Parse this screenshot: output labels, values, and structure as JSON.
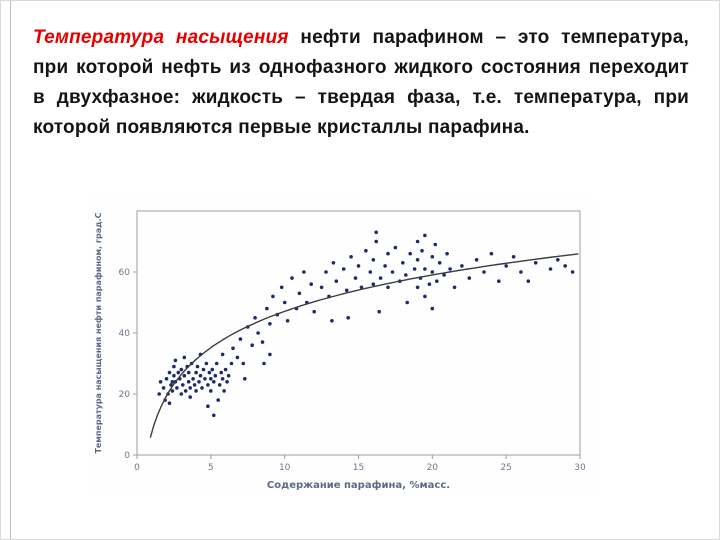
{
  "colors": {
    "accent_red": "#e60000",
    "body_text": "#141414",
    "point_color": "#1c2b6e",
    "curve_color": "#3c3c3c",
    "axis_color": "#9aa0a6"
  },
  "paragraph": {
    "term": "Температура насыщения",
    "body": " нефти парафином – это температура, при которой нефть из однофазного жидкого состояния переходит в двухфазное: жидкость – твердая фаза, т.е. температура, при которой появляются первые кристаллы парафина."
  },
  "chart_data": {
    "type": "scatter",
    "title": "",
    "xlabel": "Содержание парафина, %масс.",
    "ylabel": "Температура насыщения нефти парафином, град.С",
    "xlim": [
      0,
      30
    ],
    "ylim": [
      0,
      80
    ],
    "xticks": [
      0,
      5,
      10,
      15,
      20,
      25,
      30
    ],
    "yticks": [
      0,
      20,
      40,
      60
    ],
    "grid": false,
    "legend": "none",
    "trend": {
      "type": "log",
      "a": 17.2,
      "b": 7.5,
      "x_start": 0.9,
      "x_end": 30
    },
    "points": [
      [
        1.5,
        20
      ],
      [
        1.6,
        24
      ],
      [
        1.8,
        22
      ],
      [
        1.9,
        18
      ],
      [
        2.0,
        25
      ],
      [
        2.1,
        20
      ],
      [
        2.2,
        27
      ],
      [
        2.2,
        17
      ],
      [
        2.3,
        23
      ],
      [
        2.4,
        21
      ],
      [
        2.4,
        24
      ],
      [
        2.5,
        26
      ],
      [
        2.5,
        29
      ],
      [
        2.6,
        24
      ],
      [
        2.6,
        31
      ],
      [
        2.7,
        22
      ],
      [
        2.8,
        27
      ],
      [
        2.9,
        25
      ],
      [
        3.0,
        20
      ],
      [
        3.0,
        28
      ],
      [
        3.1,
        23
      ],
      [
        3.2,
        26
      ],
      [
        3.2,
        32
      ],
      [
        3.3,
        21
      ],
      [
        3.4,
        29
      ],
      [
        3.5,
        24
      ],
      [
        3.5,
        27
      ],
      [
        3.6,
        22
      ],
      [
        3.6,
        19
      ],
      [
        3.7,
        30
      ],
      [
        3.8,
        25
      ],
      [
        3.9,
        23
      ],
      [
        4.0,
        27
      ],
      [
        4.0,
        21
      ],
      [
        4.1,
        29
      ],
      [
        4.2,
        24
      ],
      [
        4.3,
        26
      ],
      [
        4.3,
        33
      ],
      [
        4.4,
        22
      ],
      [
        4.5,
        28
      ],
      [
        4.6,
        25
      ],
      [
        4.7,
        30
      ],
      [
        4.8,
        23
      ],
      [
        4.8,
        16
      ],
      [
        4.9,
        27
      ],
      [
        5.0,
        25
      ],
      [
        5.0,
        21
      ],
      [
        5.1,
        28
      ],
      [
        5.2,
        24
      ],
      [
        5.2,
        13
      ],
      [
        5.3,
        26
      ],
      [
        5.4,
        30
      ],
      [
        5.5,
        18
      ],
      [
        5.6,
        23
      ],
      [
        5.7,
        27
      ],
      [
        5.8,
        25
      ],
      [
        5.8,
        33
      ],
      [
        5.9,
        21
      ],
      [
        6.0,
        28
      ],
      [
        6.1,
        24
      ],
      [
        6.2,
        26
      ],
      [
        6.4,
        30
      ],
      [
        6.5,
        35
      ],
      [
        6.8,
        32
      ],
      [
        7.0,
        38
      ],
      [
        7.2,
        30
      ],
      [
        7.3,
        25
      ],
      [
        7.5,
        42
      ],
      [
        7.8,
        36
      ],
      [
        8.0,
        45
      ],
      [
        8.2,
        40
      ],
      [
        8.5,
        37
      ],
      [
        8.6,
        30
      ],
      [
        8.8,
        48
      ],
      [
        9.0,
        43
      ],
      [
        9.0,
        33
      ],
      [
        9.2,
        52
      ],
      [
        9.5,
        46
      ],
      [
        9.8,
        55
      ],
      [
        10.0,
        50
      ],
      [
        10.2,
        44
      ],
      [
        10.5,
        58
      ],
      [
        10.8,
        48
      ],
      [
        11.0,
        53
      ],
      [
        11.3,
        60
      ],
      [
        11.5,
        50
      ],
      [
        11.8,
        56
      ],
      [
        12.0,
        47
      ],
      [
        12.5,
        55
      ],
      [
        12.8,
        60
      ],
      [
        13.0,
        52
      ],
      [
        13.2,
        44
      ],
      [
        13.3,
        63
      ],
      [
        13.5,
        57
      ],
      [
        14.0,
        61
      ],
      [
        14.2,
        54
      ],
      [
        14.3,
        45
      ],
      [
        14.5,
        65
      ],
      [
        14.8,
        58
      ],
      [
        15.0,
        62
      ],
      [
        15.2,
        55
      ],
      [
        15.5,
        67
      ],
      [
        15.8,
        60
      ],
      [
        16.0,
        56
      ],
      [
        16.0,
        64
      ],
      [
        16.2,
        70
      ],
      [
        16.2,
        73
      ],
      [
        16.4,
        47
      ],
      [
        16.5,
        58
      ],
      [
        16.8,
        62
      ],
      [
        17.0,
        55
      ],
      [
        17.0,
        66
      ],
      [
        17.3,
        60
      ],
      [
        17.5,
        68
      ],
      [
        17.8,
        57
      ],
      [
        18.0,
        63
      ],
      [
        18.2,
        59
      ],
      [
        18.3,
        50
      ],
      [
        18.5,
        66
      ],
      [
        18.8,
        61
      ],
      [
        19.0,
        55
      ],
      [
        19.0,
        64
      ],
      [
        19.0,
        70
      ],
      [
        19.2,
        58
      ],
      [
        19.3,
        67
      ],
      [
        19.5,
        52
      ],
      [
        19.5,
        61
      ],
      [
        19.5,
        72
      ],
      [
        19.8,
        56
      ],
      [
        20.0,
        60
      ],
      [
        20.0,
        65
      ],
      [
        20.0,
        48
      ],
      [
        20.2,
        69
      ],
      [
        20.3,
        57
      ],
      [
        20.5,
        63
      ],
      [
        20.8,
        59
      ],
      [
        21.0,
        66
      ],
      [
        21.2,
        61
      ],
      [
        21.5,
        55
      ],
      [
        22.0,
        62
      ],
      [
        22.5,
        58
      ],
      [
        23.0,
        64
      ],
      [
        23.5,
        60
      ],
      [
        24.0,
        66
      ],
      [
        24.5,
        57
      ],
      [
        25.0,
        62
      ],
      [
        25.5,
        65
      ],
      [
        26.0,
        60
      ],
      [
        26.5,
        57
      ],
      [
        27.0,
        63
      ],
      [
        28.0,
        61
      ],
      [
        28.5,
        64
      ],
      [
        29.0,
        62
      ],
      [
        29.5,
        60
      ]
    ]
  }
}
